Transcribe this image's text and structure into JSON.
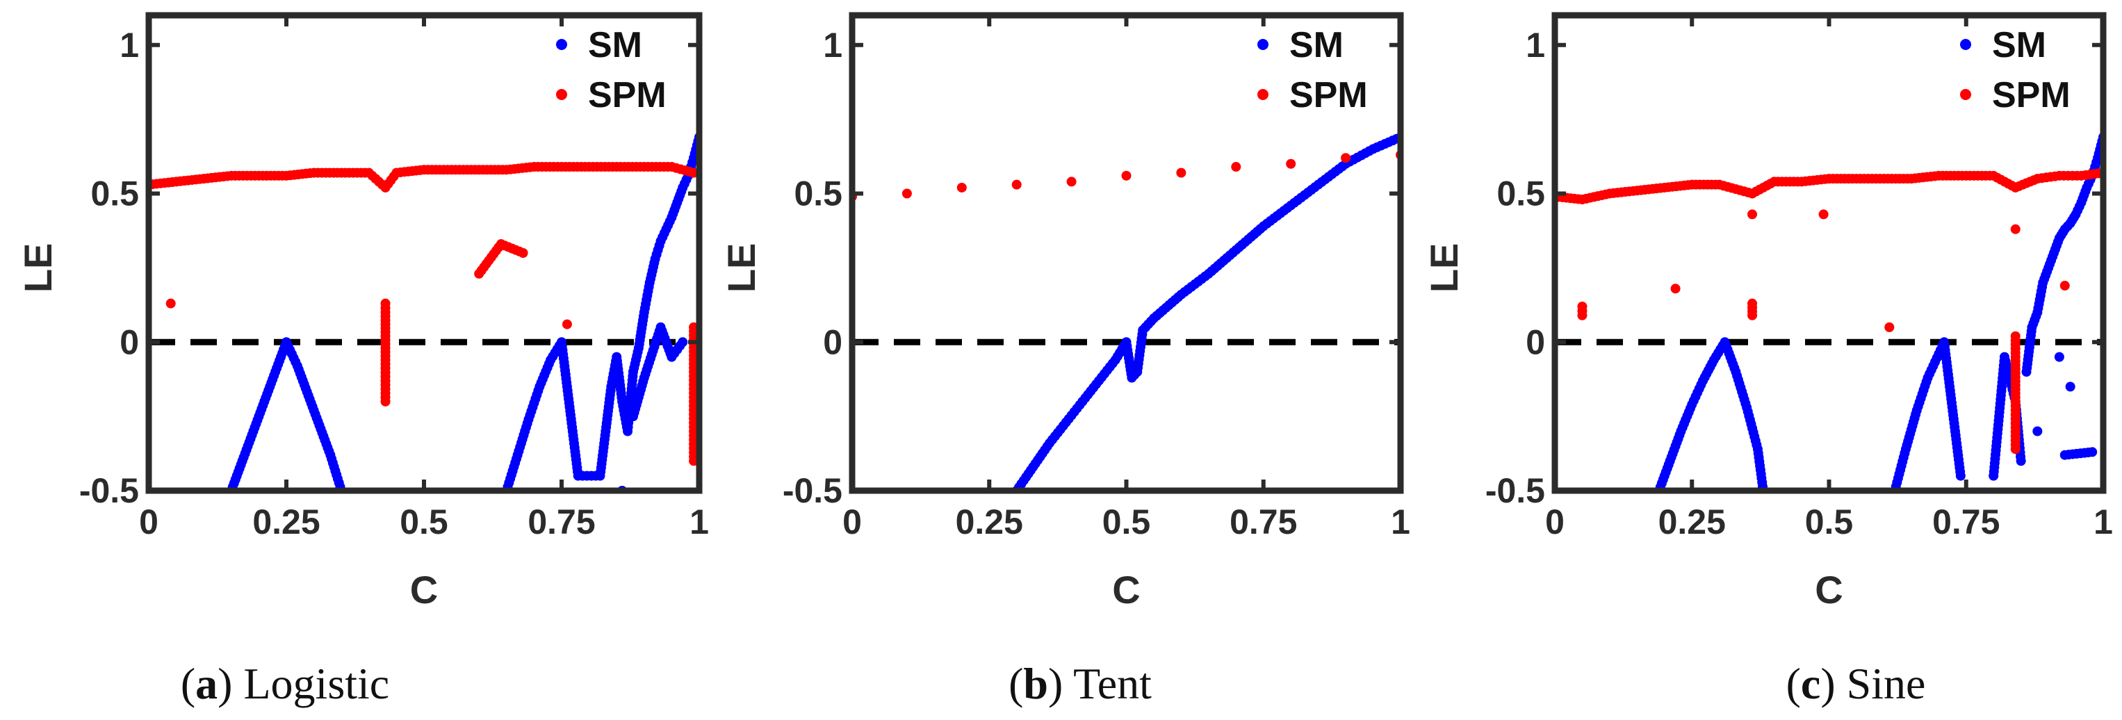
{
  "figure": {
    "colors": {
      "sm": "#0000ff",
      "spm": "#ff0000",
      "zero_line": "#000000",
      "axes": "#2b2b2b"
    }
  },
  "chart_data": [
    {
      "type": "scatter",
      "panel": "a",
      "caption": {
        "letter": "a",
        "text": "Logistic"
      },
      "xlabel": "C",
      "ylabel": "LE",
      "xlim": [
        0,
        1
      ],
      "ylim": [
        -0.5,
        1.1
      ],
      "xticks": [
        "0",
        "0.25",
        "0.5",
        "0.75",
        "1"
      ],
      "yticks": [
        "-0.5",
        "0",
        "0.5",
        "1"
      ],
      "legend": {
        "position": "top-right",
        "entries": [
          "SM",
          "SPM"
        ]
      },
      "reference_line": {
        "y": 0,
        "style": "dashed"
      },
      "series": [
        {
          "name": "SM",
          "color": "#0000ff",
          "points": [
            [
              0.15,
              -0.5
            ],
            [
              0.17,
              -0.4
            ],
            [
              0.19,
              -0.3
            ],
            [
              0.21,
              -0.2
            ],
            [
              0.23,
              -0.1
            ],
            [
              0.25,
              0
            ],
            [
              0.27,
              -0.08
            ],
            [
              0.29,
              -0.18
            ],
            [
              0.31,
              -0.28
            ],
            [
              0.33,
              -0.38
            ],
            [
              0.35,
              -0.5
            ],
            [
              0.65,
              -0.5
            ],
            [
              0.67,
              -0.38
            ],
            [
              0.69,
              -0.26
            ],
            [
              0.71,
              -0.15
            ],
            [
              0.73,
              -0.06
            ],
            [
              0.75,
              0
            ],
            [
              0.76,
              -0.15
            ],
            [
              0.77,
              -0.3
            ],
            [
              0.78,
              -0.45
            ],
            [
              0.82,
              -0.45
            ],
            [
              0.83,
              -0.3
            ],
            [
              0.84,
              -0.15
            ],
            [
              0.85,
              -0.05
            ],
            [
              0.86,
              -0.2
            ],
            [
              0.87,
              -0.3
            ],
            [
              0.88,
              -0.1
            ],
            [
              0.89,
              -0.02
            ],
            [
              0.9,
              0.1
            ],
            [
              0.91,
              0.2
            ],
            [
              0.92,
              0.28
            ],
            [
              0.93,
              0.34
            ],
            [
              0.94,
              0.38
            ],
            [
              0.95,
              0.42
            ],
            [
              0.96,
              0.47
            ],
            [
              0.97,
              0.52
            ],
            [
              0.98,
              0.56
            ],
            [
              0.99,
              0.62
            ],
            [
              1.0,
              0.69
            ],
            [
              0.86,
              -0.5
            ],
            [
              0.88,
              -0.25
            ],
            [
              0.9,
              -0.12
            ],
            [
              0.93,
              0.05
            ],
            [
              0.95,
              -0.05
            ],
            [
              0.97,
              0.0
            ]
          ]
        },
        {
          "name": "SPM",
          "color": "#ff0000",
          "points": [
            [
              0.0,
              0.53
            ],
            [
              0.05,
              0.54
            ],
            [
              0.1,
              0.55
            ],
            [
              0.15,
              0.56
            ],
            [
              0.2,
              0.56
            ],
            [
              0.25,
              0.56
            ],
            [
              0.3,
              0.57
            ],
            [
              0.35,
              0.57
            ],
            [
              0.4,
              0.57
            ],
            [
              0.43,
              0.52
            ],
            [
              0.45,
              0.57
            ],
            [
              0.5,
              0.58
            ],
            [
              0.55,
              0.58
            ],
            [
              0.6,
              0.58
            ],
            [
              0.65,
              0.58
            ],
            [
              0.7,
              0.59
            ],
            [
              0.75,
              0.59
            ],
            [
              0.8,
              0.59
            ],
            [
              0.85,
              0.59
            ],
            [
              0.9,
              0.59
            ],
            [
              0.95,
              0.59
            ],
            [
              0.99,
              0.57
            ],
            [
              0.04,
              0.13
            ],
            [
              0.43,
              0.13
            ],
            [
              0.43,
              0.1
            ],
            [
              0.43,
              0.06
            ],
            [
              0.43,
              -0.06
            ],
            [
              0.43,
              -0.2
            ],
            [
              0.6,
              0.23
            ],
            [
              0.64,
              0.33
            ],
            [
              0.68,
              0.3
            ],
            [
              0.76,
              0.06
            ],
            [
              0.99,
              0.05
            ],
            [
              0.99,
              -0.1
            ],
            [
              0.99,
              -0.2
            ],
            [
              0.99,
              -0.3
            ],
            [
              0.99,
              -0.4
            ]
          ]
        }
      ]
    },
    {
      "type": "scatter",
      "panel": "b",
      "caption": {
        "letter": "b",
        "text": "Tent"
      },
      "xlabel": "C",
      "ylabel": "LE",
      "xlim": [
        0,
        1
      ],
      "ylim": [
        -0.5,
        1.1
      ],
      "xticks": [
        "0",
        "0.25",
        "0.5",
        "0.75",
        "1"
      ],
      "yticks": [
        "-0.5",
        "0",
        "0.5",
        "1"
      ],
      "legend": {
        "position": "top-right",
        "entries": [
          "SM",
          "SPM"
        ]
      },
      "reference_line": {
        "y": 0,
        "style": "dashed"
      },
      "series": [
        {
          "name": "SM",
          "color": "#0000ff",
          "points": [
            [
              0.3,
              -0.5
            ],
            [
              0.33,
              -0.42
            ],
            [
              0.36,
              -0.34
            ],
            [
              0.39,
              -0.27
            ],
            [
              0.42,
              -0.2
            ],
            [
              0.45,
              -0.13
            ],
            [
              0.48,
              -0.06
            ],
            [
              0.5,
              0
            ],
            [
              0.51,
              -0.12
            ],
            [
              0.52,
              -0.1
            ],
            [
              0.53,
              0.04
            ],
            [
              0.55,
              0.08
            ],
            [
              0.6,
              0.16
            ],
            [
              0.65,
              0.23
            ],
            [
              0.7,
              0.31
            ],
            [
              0.75,
              0.39
            ],
            [
              0.8,
              0.46
            ],
            [
              0.85,
              0.53
            ],
            [
              0.9,
              0.6
            ],
            [
              0.95,
              0.65
            ],
            [
              1.0,
              0.69
            ]
          ]
        },
        {
          "name": "SPM",
          "color": "#ff0000",
          "points": [
            [
              0.0,
              0.49
            ],
            [
              0.1,
              0.5
            ],
            [
              0.2,
              0.52
            ],
            [
              0.3,
              0.53
            ],
            [
              0.4,
              0.54
            ],
            [
              0.5,
              0.56
            ],
            [
              0.6,
              0.57
            ],
            [
              0.7,
              0.59
            ],
            [
              0.8,
              0.6
            ],
            [
              0.9,
              0.62
            ],
            [
              1.0,
              0.63
            ]
          ]
        }
      ]
    },
    {
      "type": "scatter",
      "panel": "c",
      "caption": {
        "letter": "c",
        "text": "Sine"
      },
      "xlabel": "C",
      "ylabel": "LE",
      "xlim": [
        0,
        1
      ],
      "ylim": [
        -0.5,
        1.1
      ],
      "xticks": [
        "0",
        "0.25",
        "0.5",
        "0.75",
        "1"
      ],
      "yticks": [
        "-0.5",
        "0",
        "0.5",
        "1"
      ],
      "legend": {
        "position": "top-right",
        "entries": [
          "SM",
          "SPM"
        ]
      },
      "reference_line": {
        "y": 0,
        "style": "dashed"
      },
      "series": [
        {
          "name": "SM",
          "color": "#0000ff",
          "points": [
            [
              0.19,
              -0.5
            ],
            [
              0.21,
              -0.4
            ],
            [
              0.23,
              -0.3
            ],
            [
              0.25,
              -0.21
            ],
            [
              0.27,
              -0.13
            ],
            [
              0.29,
              -0.06
            ],
            [
              0.31,
              0
            ],
            [
              0.33,
              -0.1
            ],
            [
              0.35,
              -0.22
            ],
            [
              0.37,
              -0.36
            ],
            [
              0.38,
              -0.5
            ],
            [
              0.62,
              -0.5
            ],
            [
              0.64,
              -0.36
            ],
            [
              0.66,
              -0.23
            ],
            [
              0.68,
              -0.12
            ],
            [
              0.7,
              -0.04
            ],
            [
              0.71,
              0
            ],
            [
              0.72,
              -0.15
            ],
            [
              0.73,
              -0.3
            ],
            [
              0.74,
              -0.45
            ],
            [
              0.8,
              -0.45
            ],
            [
              0.81,
              -0.25
            ],
            [
              0.82,
              -0.05
            ],
            [
              0.84,
              -0.2
            ],
            [
              0.85,
              -0.4
            ],
            [
              0.86,
              -0.1
            ],
            [
              0.87,
              0.05
            ],
            [
              0.88,
              0.1
            ],
            [
              0.89,
              0.2
            ],
            [
              0.9,
              0.25
            ],
            [
              0.91,
              0.3
            ],
            [
              0.92,
              0.35
            ],
            [
              0.93,
              0.38
            ],
            [
              0.94,
              0.4
            ],
            [
              0.95,
              0.43
            ],
            [
              0.96,
              0.47
            ],
            [
              0.97,
              0.52
            ],
            [
              0.98,
              0.56
            ],
            [
              0.99,
              0.62
            ],
            [
              1.0,
              0.69
            ],
            [
              0.93,
              -0.38
            ],
            [
              0.98,
              -0.37
            ],
            [
              0.94,
              -0.15
            ],
            [
              0.92,
              -0.05
            ],
            [
              0.88,
              -0.3
            ]
          ]
        },
        {
          "name": "SPM",
          "color": "#ff0000",
          "points": [
            [
              0.0,
              0.49
            ],
            [
              0.05,
              0.48
            ],
            [
              0.1,
              0.5
            ],
            [
              0.15,
              0.51
            ],
            [
              0.2,
              0.52
            ],
            [
              0.25,
              0.53
            ],
            [
              0.3,
              0.53
            ],
            [
              0.36,
              0.5
            ],
            [
              0.4,
              0.54
            ],
            [
              0.45,
              0.54
            ],
            [
              0.5,
              0.55
            ],
            [
              0.55,
              0.55
            ],
            [
              0.6,
              0.55
            ],
            [
              0.65,
              0.55
            ],
            [
              0.7,
              0.56
            ],
            [
              0.75,
              0.56
            ],
            [
              0.8,
              0.56
            ],
            [
              0.84,
              0.52
            ],
            [
              0.88,
              0.55
            ],
            [
              0.92,
              0.56
            ],
            [
              0.96,
              0.56
            ],
            [
              1.0,
              0.57
            ],
            [
              0.05,
              0.12
            ],
            [
              0.05,
              0.09
            ],
            [
              0.22,
              0.18
            ],
            [
              0.36,
              0.43
            ],
            [
              0.36,
              0.13
            ],
            [
              0.36,
              0.09
            ],
            [
              0.49,
              0.43
            ],
            [
              0.61,
              0.05
            ],
            [
              0.84,
              0.02
            ],
            [
              0.84,
              -0.05
            ],
            [
              0.84,
              -0.2
            ],
            [
              0.84,
              -0.36
            ],
            [
              0.84,
              0.38
            ],
            [
              0.93,
              0.19
            ]
          ]
        }
      ]
    }
  ]
}
